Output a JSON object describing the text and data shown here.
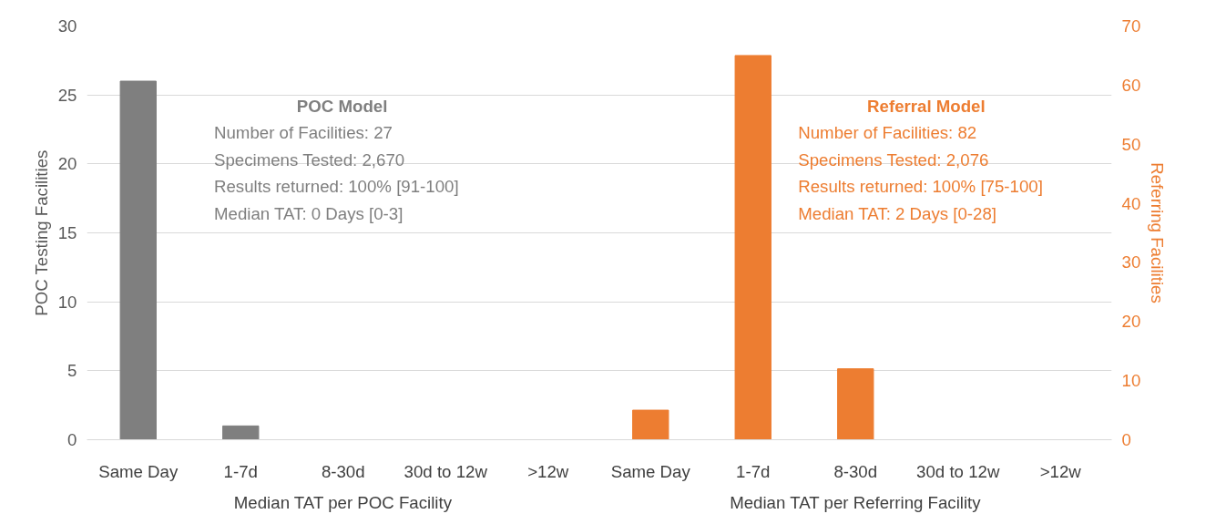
{
  "chart_data": {
    "type": "bar",
    "categories": [
      "Same Day",
      "1-7d",
      "8-30d",
      "30d to 12w",
      ">12w",
      "Same Day",
      "1-7d",
      "8-30d",
      "30d to 12w",
      ">12w"
    ],
    "ylabel": "POC Testing Facilities",
    "y2label": "Referring Facilities",
    "ylim": [
      0,
      30
    ],
    "yticks": [
      0,
      5,
      10,
      15,
      20,
      25,
      30
    ],
    "y2lim": [
      0,
      70
    ],
    "y2ticks": [
      0,
      10,
      20,
      30,
      40,
      50,
      60,
      70
    ],
    "grid": "y",
    "series": [
      {
        "color": "#7f7f7f",
        "values": [
          26,
          1,
          0,
          0,
          0,
          null,
          null,
          null,
          null,
          null
        ]
      },
      {
        "color": "#ed7d31",
        "axis": "y2",
        "values": [
          null,
          null,
          null,
          null,
          null,
          5,
          65,
          12,
          0,
          0
        ]
      }
    ],
    "annotations": [
      "POC Model",
      "Number of Facilities: 27",
      "Specimens Tested: 2,670",
      "Results returned: 100% [91-100]",
      "Median TAT: 0 Days [0-3]",
      "Referral Model",
      "Number of Facilities: 82",
      "Specimens Tested: 2,076",
      "Results returned: 100% [75-100]",
      "Median TAT: 2 Days [0-28]",
      "Median TAT per POC Facility",
      "Median TAT per Referring Facility"
    ]
  }
}
